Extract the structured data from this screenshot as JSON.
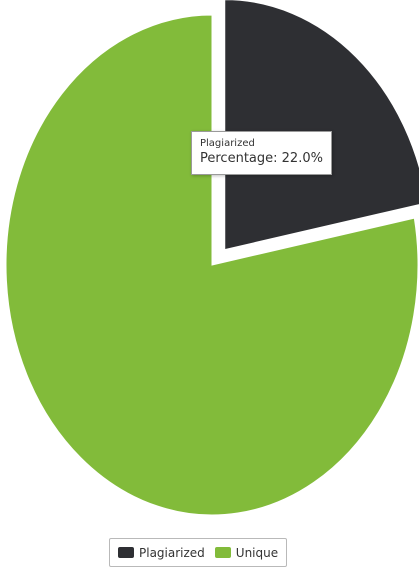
{
  "chart_data": {
    "type": "pie",
    "title": "",
    "slices": [
      {
        "name": "Plagiarized",
        "value": 22.0,
        "color": "#2e2f33",
        "exploded": true
      },
      {
        "name": "Unique",
        "value": 78.0,
        "color": "#82bb3a",
        "exploded": false
      }
    ],
    "start_angle_deg": 0,
    "legend_position": "bottom-center"
  },
  "tooltip": {
    "series_name": "Plagiarized",
    "label": "Percentage",
    "value_text": "22.0%"
  },
  "legend": {
    "items": [
      {
        "label": "Plagiarized",
        "color": "#2e2f33"
      },
      {
        "label": "Unique",
        "color": "#82bb3a"
      }
    ]
  }
}
